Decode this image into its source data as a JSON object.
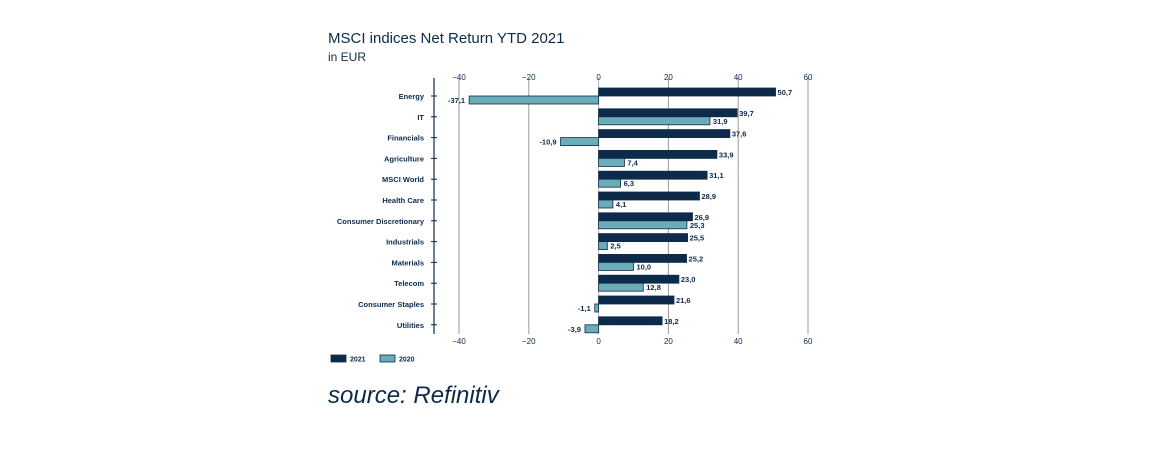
{
  "chart_data": {
    "type": "bar",
    "orientation": "horizontal",
    "title": "MSCI indices Net Return YTD 2021",
    "subtitle": "in EUR",
    "categories": [
      "Energy",
      "IT",
      "Financials",
      "Agriculture",
      "MSCI World",
      "Health Care",
      "Consumer Discretionary",
      "Industrials",
      "Materials",
      "Telecom",
      "Consumer Staples",
      "Utilities"
    ],
    "series": [
      {
        "name": "2021",
        "color": "#0d2a4a",
        "values": [
          50.7,
          39.7,
          37.6,
          33.9,
          31.1,
          28.9,
          26.9,
          25.5,
          25.2,
          23.0,
          21.6,
          18.2
        ],
        "labels": [
          "50,7",
          "39,7",
          "37,6",
          "33,9",
          "31,1",
          "28,9",
          "26,9",
          "25,5",
          "25,2",
          "23,0",
          "21,6",
          "18,2"
        ]
      },
      {
        "name": "2020",
        "color": "#6aacb8",
        "values": [
          -37.1,
          31.9,
          -10.9,
          7.4,
          6.3,
          4.1,
          25.3,
          2.5,
          10.0,
          12.8,
          -1.1,
          -3.9
        ],
        "labels": [
          "-37,1",
          "31,9",
          "-10,9",
          "7,4",
          "6,3",
          "4,1",
          "25,3",
          "2,5",
          "10,0",
          "12,8",
          "-1,1",
          "-3,9"
        ]
      }
    ],
    "xlim": [
      -40,
      60
    ],
    "xticks": [
      -40,
      -20,
      0,
      20,
      40,
      60
    ],
    "grid": true,
    "legend_position": "bottom-left"
  },
  "source": "source: Refinitiv"
}
